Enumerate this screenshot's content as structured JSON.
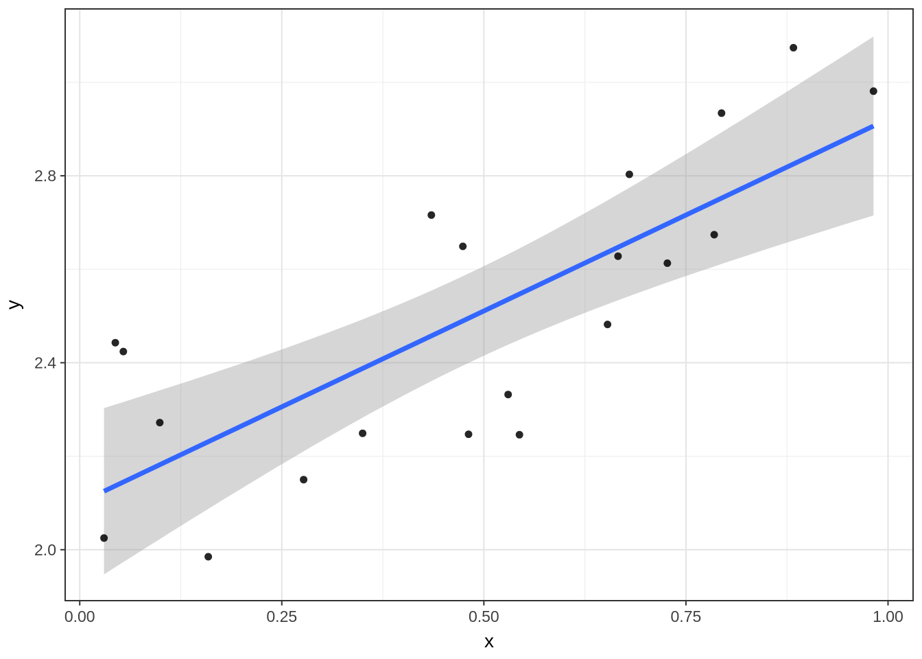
{
  "chart_data": {
    "type": "scatter",
    "title": "",
    "xlabel": "x",
    "ylabel": "y",
    "grid": true,
    "legend": "none",
    "xlim": [
      -0.018,
      1.031
    ],
    "ylim": [
      1.891,
      3.157
    ],
    "x_ticks": {
      "values": [
        0.0,
        0.25,
        0.5,
        0.75,
        1.0
      ],
      "labels": [
        "0.00",
        "0.25",
        "0.50",
        "0.75",
        "1.00"
      ]
    },
    "y_ticks": {
      "values": [
        2.0,
        2.4,
        2.8
      ],
      "labels": [
        "2.0",
        "2.4",
        "2.8"
      ]
    },
    "x_minor_ticks": [
      0.125,
      0.375,
      0.625,
      0.875
    ],
    "y_minor_ticks": [
      2.2,
      2.6,
      3.0
    ],
    "points": [
      [
        0.03,
        2.025
      ],
      [
        0.044,
        2.443
      ],
      [
        0.054,
        2.424
      ],
      [
        0.099,
        2.272
      ],
      [
        0.159,
        1.985
      ],
      [
        0.277,
        2.15
      ],
      [
        0.35,
        2.249
      ],
      [
        0.435,
        2.716
      ],
      [
        0.474,
        2.649
      ],
      [
        0.481,
        2.247
      ],
      [
        0.53,
        2.332
      ],
      [
        0.544,
        2.246
      ],
      [
        0.653,
        2.482
      ],
      [
        0.666,
        2.628
      ],
      [
        0.68,
        2.803
      ],
      [
        0.727,
        2.613
      ],
      [
        0.785,
        2.674
      ],
      [
        0.794,
        2.934
      ],
      [
        0.883,
        3.074
      ],
      [
        0.982,
        2.981
      ]
    ],
    "smooth": {
      "method": "lm",
      "slope": 0.821,
      "intercept": 2.1,
      "ci_level": 0.95,
      "x_range": [
        0.03,
        0.982
      ]
    },
    "colors": {
      "point": "#000000",
      "point_opacity": 0.85,
      "line": "#3366FF",
      "ribbon": "#999999",
      "ribbon_opacity": 0.4,
      "grid_major": "#E4E4E4",
      "grid_minor": "#EFEFEF",
      "panel_border": "#333333",
      "tick": "#333333",
      "tick_label": "#404040",
      "axis_title": "#000000",
      "background": "#FFFFFF"
    }
  }
}
